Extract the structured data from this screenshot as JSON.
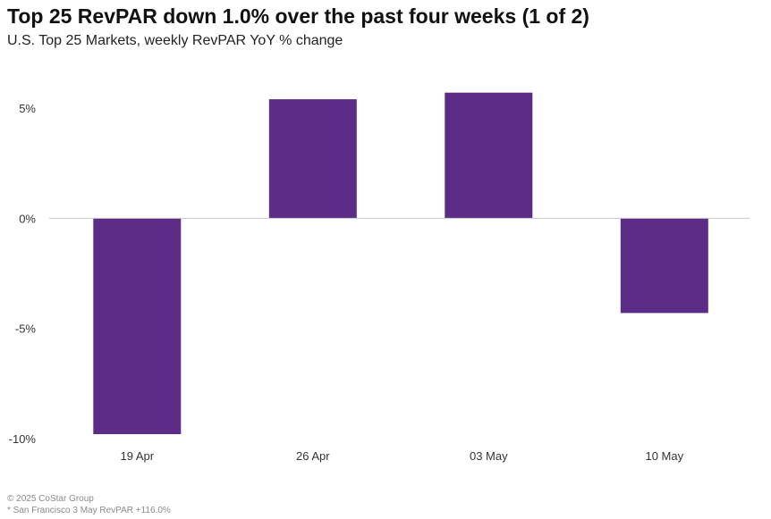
{
  "header": {
    "title": "Top 25 RevPAR down 1.0% over the past four weeks (1 of 2)",
    "subtitle": "U.S. Top 25 Markets, weekly RevPAR YoY % change"
  },
  "footer": {
    "copyright": "© 2025 CoStar Group",
    "note": "* San Francisco 3 May RevPAR +116.0%"
  },
  "colors": {
    "bar": "#5b2d87",
    "zero_line": "#c8c8c8"
  },
  "chart_data": {
    "type": "bar",
    "title": "Top 25 RevPAR down 1.0% over the past four weeks (1 of 2)",
    "subtitle": "U.S. Top 25 Markets, weekly RevPAR YoY % change",
    "categories": [
      "19 Apr",
      "26 Apr",
      "03 May",
      "10 May"
    ],
    "values": [
      -9.8,
      5.4,
      5.7,
      -4.3
    ],
    "ylim": [
      -10,
      5
    ],
    "yticks": [
      5,
      0,
      -5,
      -10
    ],
    "ytick_labels": [
      "5%",
      "0%",
      "-5%",
      "-10%"
    ],
    "xlabel": "",
    "ylabel": "",
    "grid": false,
    "legend": "none"
  }
}
